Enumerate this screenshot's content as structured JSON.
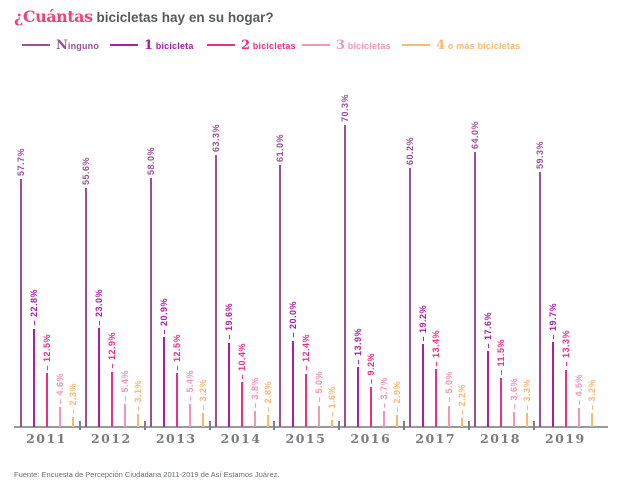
{
  "title": {
    "accent": "¿Cuántas",
    "rest": "bicicletas hay en su hogar?"
  },
  "footer": {
    "text": "Fuente: Encuesta de Percepción Ciudadana 2011-2019 de Así Estamos Juárez."
  },
  "colors": {
    "title_accent": "#f0437b",
    "title_text": "#58595b",
    "axis": "#98999b",
    "year_labels": "#7a7b7e",
    "footer_text": "#6e6f72"
  },
  "chart_data": {
    "type": "bar",
    "variant": "grouped-lollipop",
    "title": "¿Cuántas bicicletas hay en su hogar?",
    "categories": [
      "2011",
      "2012",
      "2013",
      "2014",
      "2015",
      "2016",
      "2017",
      "2018",
      "2019"
    ],
    "series": [
      {
        "name": "Ninguno",
        "legend_initial": "N",
        "legend_rest": "inguno",
        "color": "#9c4f98",
        "values": [
          57.7,
          55.6,
          58.0,
          63.3,
          61.0,
          70.3,
          60.2,
          64.0,
          59.3
        ]
      },
      {
        "name": "1 bicicleta",
        "legend_initial": "1",
        "legend_rest": " bicicleta",
        "color": "#aa1fa5",
        "values": [
          22.8,
          23.0,
          20.9,
          19.6,
          20.0,
          13.9,
          19.2,
          17.6,
          19.7
        ]
      },
      {
        "name": "2 bicicletas",
        "legend_initial": "2",
        "legend_rest": " bicicletas",
        "color": "#ec2f86",
        "values": [
          12.5,
          12.9,
          12.5,
          10.4,
          12.4,
          9.2,
          13.4,
          11.5,
          13.3
        ]
      },
      {
        "name": "3 bicicletas",
        "legend_initial": "3",
        "legend_rest": " bicicletas",
        "color": "#f693b8",
        "values": [
          4.6,
          5.4,
          5.4,
          3.8,
          5.0,
          3.7,
          5.0,
          3.6,
          4.5
        ]
      },
      {
        "name": "4 o más bicicletas",
        "legend_initial": "4",
        "legend_rest": " o más bicicletas",
        "color": "#f9b873",
        "values": [
          2.3,
          3.1,
          3.2,
          2.8,
          1.6,
          2.9,
          2.2,
          3.3,
          3.2
        ]
      }
    ],
    "value_suffix": "%",
    "value_decimals": 1,
    "ylim": [
      0,
      75
    ],
    "grid": false,
    "legend_position": "top",
    "xlabel": "",
    "ylabel": ""
  }
}
